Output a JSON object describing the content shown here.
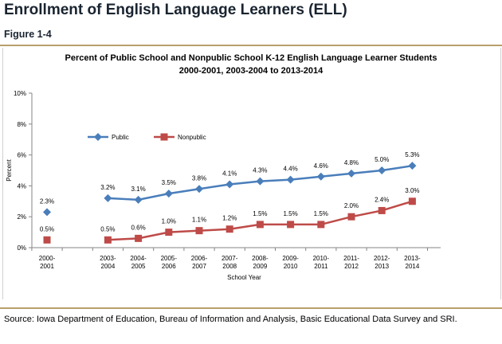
{
  "header": {
    "page_title": "Enrollment of English Language Learners (ELL)",
    "figure_label": "Figure 1-4"
  },
  "chart_data": {
    "type": "line",
    "title": "Percent of Public School and Nonpublic School K-12 English Language Learner Students",
    "subtitle": "2000-2001, 2003-2004 to 2013-2014",
    "xlabel": "School Year",
    "ylabel": "Percent",
    "ylim": [
      0,
      10
    ],
    "yticks": [
      "0%",
      "2%",
      "4%",
      "6%",
      "8%",
      "10%"
    ],
    "ytick_values": [
      0,
      2,
      4,
      6,
      8,
      10
    ],
    "grid": false,
    "legend_position": "top-left",
    "categories": [
      [
        "2000-",
        "2001"
      ],
      [
        "2003-",
        "2004"
      ],
      [
        "2004-",
        "2005"
      ],
      [
        "2005-",
        "2006"
      ],
      [
        "2006-",
        "2007"
      ],
      [
        "2007-",
        "2008"
      ],
      [
        "2008-",
        "2009"
      ],
      [
        "2009-",
        "2010"
      ],
      [
        "2010-",
        "2011"
      ],
      [
        "2011-",
        "2012"
      ],
      [
        "2012-",
        "2013"
      ],
      [
        "2013-",
        "2014"
      ]
    ],
    "series": [
      {
        "name": "Public",
        "color": "#4a7ebb",
        "marker": "diamond",
        "values": [
          2.3,
          3.2,
          3.1,
          3.5,
          3.8,
          4.1,
          4.3,
          4.4,
          4.6,
          4.8,
          5.0,
          5.3
        ],
        "labels": [
          "2.3%",
          "3.2%",
          "3.1%",
          "3.5%",
          "3.8%",
          "4.1%",
          "4.3%",
          "4.4%",
          "4.6%",
          "4.8%",
          "5.0%",
          "5.3%"
        ]
      },
      {
        "name": "Nonpublic",
        "color": "#be4b48",
        "marker": "square",
        "values": [
          0.5,
          0.5,
          0.6,
          1.0,
          1.1,
          1.2,
          1.5,
          1.5,
          1.5,
          2.0,
          2.4,
          3.0
        ],
        "labels": [
          "0.5%",
          "0.5%",
          "0.6%",
          "1.0%",
          "1.1%",
          "1.2%",
          "1.5%",
          "1.5%",
          "1.5%",
          "2.0%",
          "2.4%",
          "3.0%"
        ]
      }
    ]
  },
  "footer": {
    "source": "Source:  Iowa Department of Education, Bureau of Information and Analysis, Basic Educational Data Survey and SRI."
  }
}
